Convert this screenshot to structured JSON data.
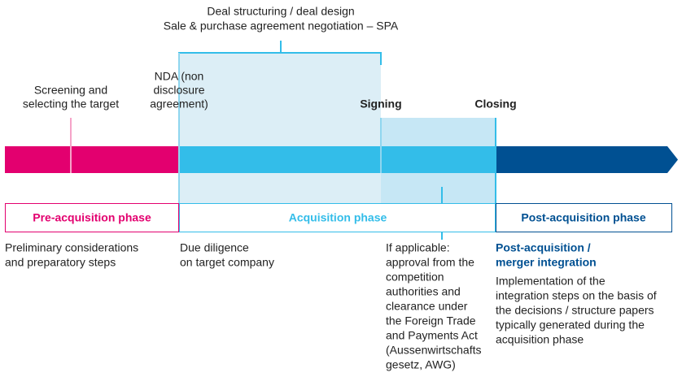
{
  "deal_structuring": [
    "Deal structuring / deal design",
    "Sale & purchase agreement negotiation – SPA"
  ],
  "milestones": [
    {
      "label": [
        "Screening and",
        "selecting the target"
      ]
    },
    {
      "label": [
        "NDA (non",
        "disclosure",
        "agreement)"
      ]
    },
    {
      "label": [
        "Signing"
      ]
    },
    {
      "label": [
        "Closing"
      ]
    }
  ],
  "phases": [
    {
      "title": "Pre-acquisition phase",
      "description": [
        "Preliminary considerations",
        "and preparatory steps"
      ]
    },
    {
      "title": "Acquisition phase",
      "description": [
        "Due diligence",
        "on target company"
      ]
    },
    {
      "title": "Post-acquisition phase",
      "subtitle": [
        "Post-acquisition /",
        "merger integration"
      ],
      "description": [
        "Implementation of the",
        "integration steps on the basis of",
        "the decisions / structure papers",
        "typically generated during the",
        "acquisition phase"
      ]
    }
  ],
  "approval_note": [
    "If applicable:",
    "approval from the",
    "competition",
    "authorities and",
    "clearance under",
    "the Foreign Trade",
    "and Payments Act",
    "(Aussenwirtschafts",
    "gesetz, AWG)"
  ]
}
